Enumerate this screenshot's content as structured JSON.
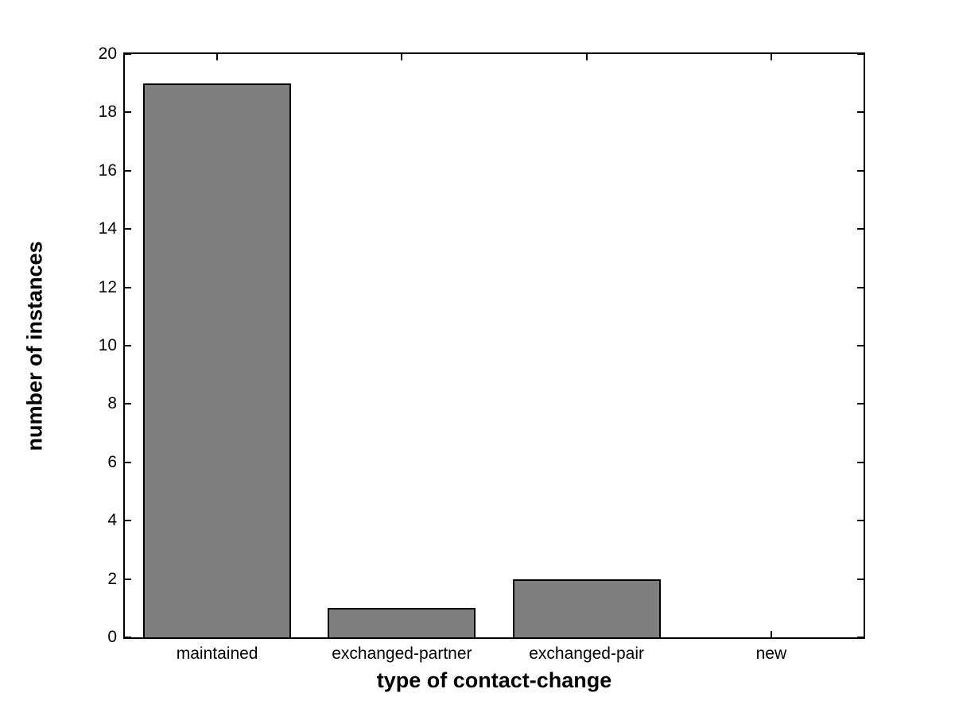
{
  "chart_data": {
    "type": "bar",
    "categories": [
      "maintained",
      "exchanged-partner",
      "exchanged-pair",
      "new"
    ],
    "values": [
      19,
      1,
      2,
      0
    ],
    "title": "",
    "xlabel": "type of contact-change",
    "ylabel": "number of instances",
    "ylim": [
      0,
      20
    ],
    "yticks": [
      0,
      2,
      4,
      6,
      8,
      10,
      12,
      14,
      16,
      18,
      20
    ],
    "grid": false,
    "legend": "none",
    "bar_width_fraction": 0.8,
    "colors": {
      "bar_fill": "#7f7f7f",
      "bar_edge": "#000000",
      "axis": "#000000",
      "text": "#000000",
      "background": "#ffffff"
    }
  }
}
